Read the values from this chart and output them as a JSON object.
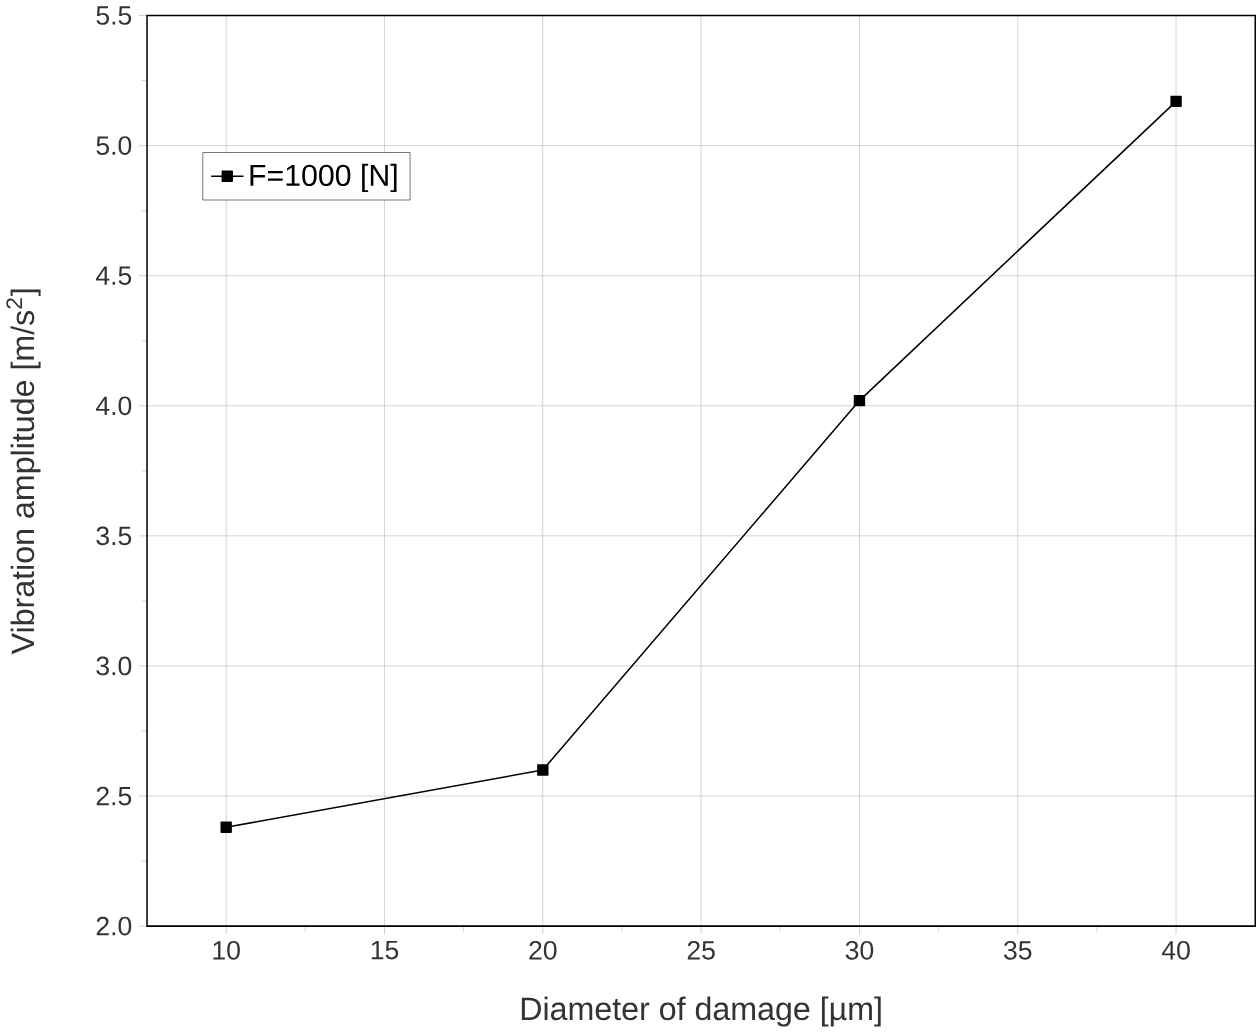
{
  "chart_data": {
    "type": "line",
    "xlabel": "Diameter of damage [µm]",
    "ylabel": "Vibration amplitude [m/s$^{2}$]",
    "x": [
      10,
      20,
      30,
      40
    ],
    "series": [
      {
        "name": "F=1000 [N]",
        "color": "#000000",
        "values": [
          2.38,
          2.6,
          4.02,
          5.17
        ]
      }
    ],
    "xlim": [
      7.5,
      42.5
    ],
    "xticks": [
      10,
      15,
      20,
      25,
      30,
      35,
      40
    ],
    "ylim": [
      2.0,
      5.5
    ],
    "yticks": [
      {
        "value": 2.0,
        "label": "2.0"
      },
      {
        "value": 2.5,
        "label": "2.5"
      },
      {
        "value": 3.0,
        "label": "3.0"
      },
      {
        "value": 3.5,
        "label": "3.5"
      },
      {
        "value": 4.0,
        "label": "4.0"
      },
      {
        "value": 4.5,
        "label": "4.5"
      },
      {
        "value": 5.0,
        "label": "5.0"
      },
      {
        "value": 5.5,
        "label": "5.5"
      }
    ],
    "grid": true,
    "legend": "top left",
    "marker": "square",
    "line_style": "solid"
  }
}
